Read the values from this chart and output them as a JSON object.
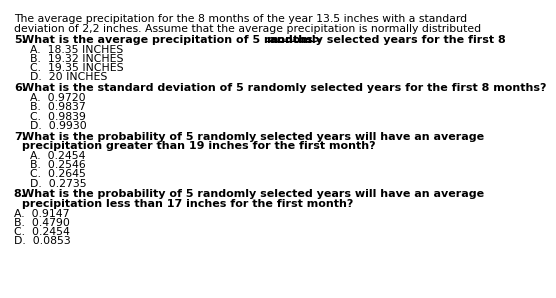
{
  "background_color": "#ffffff",
  "text_color": "#000000",
  "intro_line1": "The average precipitation for the 8 months of the year 13.5 inches with a standard",
  "intro_line2": "deviation of 2,2 inches. Assume that the average precipitation is normally distributed",
  "q5_number": "5.",
  "q5_text": "What is the average precipitation of 5 randomly selected years for the first 8 ",
  "q5_underline": "months>",
  "q5_choices": [
    "A.  18.35 INCHES",
    "B.  19.32 INCHES",
    "C.  19.35 INCHES",
    "D.  20 INCHES"
  ],
  "q6_number": "6.",
  "q6_text": "What is the standard deviation of 5 randomly selected years for the first 8 months?",
  "q6_choices": [
    "A.  0.9720",
    "B.  0.9837",
    "C.  0.9839",
    "D.  0.9930"
  ],
  "q7_number": "7.",
  "q7_line1": "What is the probability of 5 randomly selected years will have an average",
  "q7_line2": "precipitation greater than 19 inches for the first month?",
  "q7_choices": [
    "A.  0.2454",
    "B.  0.2546",
    "C.  0.2645",
    "D.  0.2735"
  ],
  "q8_number": "8.",
  "q8_line1": "What is the probability of 5 randomly selected years will have an average",
  "q8_line2": "precipitation less than 17 inches for the first month?",
  "q8_choices": [
    "A.  0.9147",
    "B.  0.4790",
    "C.  0.2454",
    "D.  0.0853"
  ],
  "font_size": 7.8,
  "font_size_bold": 8.0
}
